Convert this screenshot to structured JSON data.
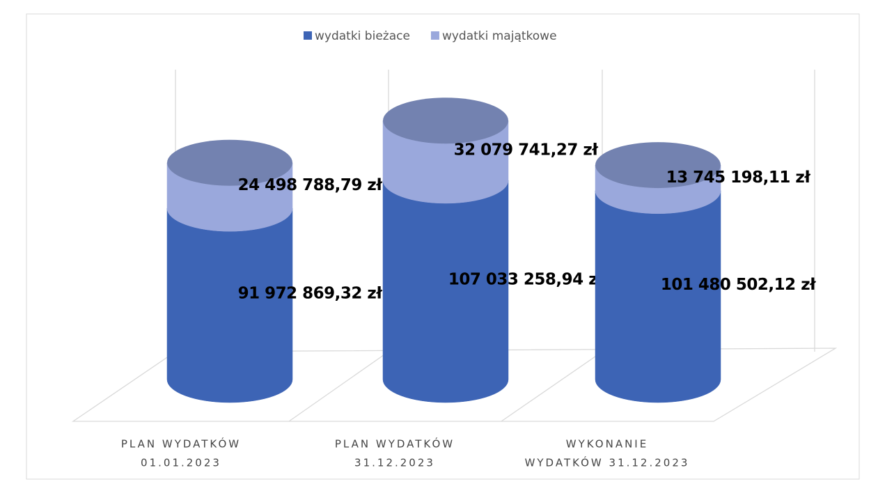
{
  "chart_data": {
    "type": "cylinder-stacked",
    "categories": [
      [
        "PLAN WYDATKÓW",
        "01.01.2023"
      ],
      [
        "PLAN WYDATKÓW",
        "31.12.2023"
      ],
      [
        "WYKONANIE",
        "WYDATKÓW 31.12.2023"
      ]
    ],
    "series": [
      {
        "name": "wydatki bieżace",
        "color": "#3d64b5",
        "values": [
          91972869.32,
          107033258.94,
          101480502.12
        ],
        "value_labels": [
          "91 972 869,32 zł",
          "107 033 258,94 zł",
          "101 480 502,12 zł"
        ]
      },
      {
        "name": "wydatki majątkowe",
        "color": "#9aa8dc",
        "values": [
          24498788.79,
          32079741.27,
          13745198.11
        ],
        "value_labels": [
          "24 498 788,79 zł",
          "32 079 741,27 zł",
          "13 745 198,11 zł"
        ]
      }
    ],
    "legend": "top"
  }
}
